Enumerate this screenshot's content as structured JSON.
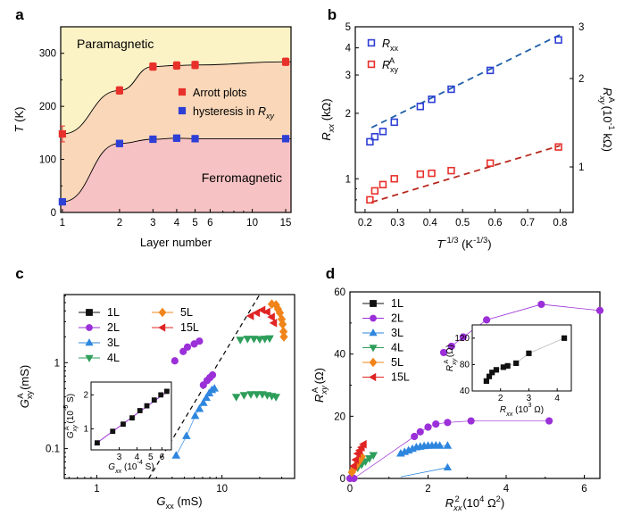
{
  "chart_data": [
    {
      "panel": "a",
      "type": "scatter",
      "xlabel": "Layer number",
      "ylabel": "T (K)",
      "x_scale": "log",
      "xlim": [
        0.98,
        16
      ],
      "ylim": [
        0,
        350
      ],
      "x_ticks": [
        1,
        2,
        3,
        4,
        5,
        6,
        10,
        15
      ],
      "y_ticks": [
        0,
        100,
        200,
        300
      ],
      "regions": [
        "Paramagnetic",
        "Ferromagnetic"
      ],
      "region_colors": [
        "#fbf2c6",
        "#f9d7b8",
        "#f7c2c4"
      ],
      "series": [
        {
          "name": "Arrott plots",
          "color": "#e8302b",
          "x": [
            1,
            2,
            3,
            4,
            5,
            15
          ],
          "y": [
            148,
            230,
            275,
            277,
            278,
            284
          ],
          "err": [
            15,
            7,
            7,
            7,
            7,
            7
          ]
        },
        {
          "name": "hysteresis in R_xy",
          "color": "#2e3fd6",
          "x": [
            1,
            2,
            3,
            4,
            5,
            15
          ],
          "y": [
            20,
            130,
            138,
            140,
            139,
            139
          ],
          "err": [
            3,
            6,
            6,
            6,
            6,
            6
          ]
        }
      ]
    },
    {
      "panel": "b",
      "type": "scatter",
      "xlabel": "T^{-1/3} (K^{-1/3})",
      "ylabel_left": "R_xx (kΩ)",
      "ylabel_right": "R^A_xy (10^-1 kΩ)",
      "y_scale": "log",
      "xlim": [
        0.17,
        0.84
      ],
      "ylim_left": [
        0.7,
        5
      ],
      "ylim_right": [
        0.7,
        3
      ],
      "x_ticks": [
        0.2,
        0.3,
        0.4,
        0.5,
        0.6,
        0.7,
        0.8
      ],
      "y_ticks_left": [
        1,
        2,
        3,
        4,
        5
      ],
      "y_ticks_right": [
        1,
        2,
        3
      ],
      "series": [
        {
          "name": "R_xx",
          "color": "#2e3fd6",
          "x": [
            0.215,
            0.23,
            0.255,
            0.29,
            0.37,
            0.405,
            0.465,
            0.585,
            0.795
          ],
          "y": [
            1.48,
            1.56,
            1.65,
            1.82,
            2.15,
            2.32,
            2.58,
            3.15,
            4.35
          ]
        },
        {
          "name": "R^A_xy",
          "color": "#e8302b",
          "x": [
            0.215,
            0.23,
            0.255,
            0.29,
            0.37,
            0.405,
            0.465,
            0.585,
            0.795
          ],
          "y": [
            0.8,
            0.88,
            0.94,
            1.0,
            1.05,
            1.06,
            1.09,
            1.18,
            1.4
          ]
        }
      ]
    },
    {
      "panel": "c",
      "type": "scatter",
      "xlabel": "G_xx (mS)",
      "ylabel": "G^A_xy (mS)",
      "x_scale": "log",
      "y_scale": "log",
      "xlim": [
        0.55,
        38
      ],
      "ylim": [
        0.045,
        6.2
      ],
      "x_ticks": [
        1,
        10
      ],
      "y_ticks": [
        0.1,
        1
      ],
      "series": [
        {
          "name": "1L",
          "color": "#111111",
          "marker": "square",
          "x": [],
          "y": []
        },
        {
          "name": "2L",
          "color": "#9b30d9",
          "marker": "circle",
          "x": [
            4.2,
            4.9,
            5.3,
            6.0,
            6.6,
            7.1,
            7.6,
            8.0,
            8.4
          ],
          "y": [
            1.05,
            1.35,
            1.52,
            1.65,
            1.78,
            0.55,
            0.62,
            0.67,
            0.72
          ]
        },
        {
          "name": "3L",
          "color": "#2e86de",
          "marker": "triangle-up",
          "x": [
            4.3,
            5.2,
            6.1,
            6.6,
            7.1,
            7.5,
            7.9,
            8.3,
            8.7
          ],
          "y": [
            0.083,
            0.14,
            0.24,
            0.29,
            0.34,
            0.39,
            0.44,
            0.48,
            0.5
          ]
        },
        {
          "name": "4L",
          "color": "#2e9e5b",
          "marker": "triangle-down",
          "x": [
            13,
            15,
            17,
            19,
            21,
            23,
            25,
            27,
            14,
            16,
            18,
            20,
            22,
            24
          ],
          "y": [
            0.4,
            0.42,
            0.43,
            0.43,
            0.43,
            0.42,
            0.41,
            0.4,
            1.85,
            1.9,
            1.9,
            1.88,
            1.9,
            1.92
          ]
        },
        {
          "name": "5L",
          "color": "#f0841a",
          "marker": "diamond",
          "x": [
            25,
            27,
            28,
            29,
            30,
            30.5,
            31,
            31.2
          ],
          "y": [
            4.8,
            4.7,
            4.2,
            3.8,
            3.2,
            2.8,
            2.3,
            2.0
          ]
        },
        {
          "name": "15L",
          "color": "#e02424",
          "marker": "triangle-left",
          "x": [
            17,
            19,
            21,
            23,
            25,
            26
          ],
          "y": [
            3.5,
            3.8,
            4.1,
            3.9,
            3.4,
            2.9
          ]
        }
      ],
      "inset": {
        "xlabel": "G_xx (10^-4 S)",
        "ylabel": "G^A_xy (10^-5 S)",
        "x_ticks": [
          3,
          4,
          5,
          6
        ],
        "y_ticks": [
          1,
          2
        ],
        "x": [
          2.1,
          2.7,
          3.2,
          3.7,
          4.2,
          4.7,
          5.3,
          5.9,
          6.5
        ],
        "y": [
          0.75,
          0.95,
          1.1,
          1.25,
          1.45,
          1.6,
          1.8,
          2.0,
          2.15
        ]
      }
    },
    {
      "panel": "d",
      "type": "scatter",
      "xlabel": "R^2_xx (10^4 Ω^2)",
      "ylabel": "R^A_xy (Ω)",
      "xlim": [
        0,
        6.4
      ],
      "ylim": [
        0,
        60
      ],
      "x_ticks": [
        0,
        2,
        4,
        6
      ],
      "y_ticks": [
        0,
        20,
        40,
        60
      ],
      "series": [
        {
          "name": "1L",
          "color": "#111111",
          "marker": "square",
          "x": [],
          "y": []
        },
        {
          "name": "2L",
          "color": "#9b30d9",
          "marker": "circle",
          "x": [
            1.65,
            1.8,
            2.0,
            2.2,
            2.5,
            3.1,
            5.1,
            0.0,
            0.1
          ],
          "y": [
            13.5,
            15,
            16.5,
            17.5,
            18,
            18.5,
            18.5,
            0,
            0
          ]
        },
        {
          "name": "3L",
          "color": "#2e86de",
          "marker": "triangle-up",
          "x": [
            1.3,
            1.4,
            1.5,
            1.6,
            1.7,
            1.8,
            1.9,
            2.0,
            2.1,
            2.2,
            2.3,
            2.5
          ],
          "y": [
            8,
            8.5,
            9,
            9.5,
            10,
            10.2,
            10.4,
            10.5,
            10.5,
            10.6,
            10.5,
            10.5
          ]
        },
        {
          "name": "4L",
          "color": "#2e9e5b",
          "marker": "triangle-down",
          "x": [
            0.2,
            0.3,
            0.4,
            0.5,
            0.6
          ],
          "y": [
            3.5,
            4.5,
            5.5,
            6.5,
            7.5
          ]
        },
        {
          "name": "5L",
          "color": "#f0841a",
          "marker": "diamond",
          "x": [
            0.05,
            0.1,
            0.15,
            0.2,
            0.25,
            0.3
          ],
          "y": [
            2,
            3,
            4,
            5,
            6,
            7
          ]
        },
        {
          "name": "15L",
          "color": "#e02424",
          "marker": "triangle-left",
          "x": [
            0.1,
            0.15,
            0.2,
            0.25,
            0.3,
            0.35
          ],
          "y": [
            4,
            6,
            8,
            9,
            10,
            11
          ]
        }
      ],
      "upper_curve": {
        "color": "#9b30d9",
        "x": [
          2.4,
          2.6,
          2.9,
          3.5,
          4.9,
          6.4
        ],
        "y": [
          40.5,
          42.5,
          45.5,
          51,
          56,
          54
        ]
      },
      "inset": {
        "xlabel": "R_xx (10^3 Ω)",
        "ylabel": "R^A_xy (Ω)",
        "xlim": [
          1,
          4.5
        ],
        "ylim": [
          40,
          140
        ],
        "x_ticks": [
          2,
          3,
          4
        ],
        "y_ticks": [
          40,
          80,
          120
        ],
        "x": [
          1.5,
          1.6,
          1.7,
          1.85,
          2.1,
          2.25,
          2.55,
          3.0,
          4.25
        ],
        "y": [
          55,
          62,
          68,
          72,
          76,
          78,
          82,
          97,
          120
        ]
      }
    }
  ]
}
